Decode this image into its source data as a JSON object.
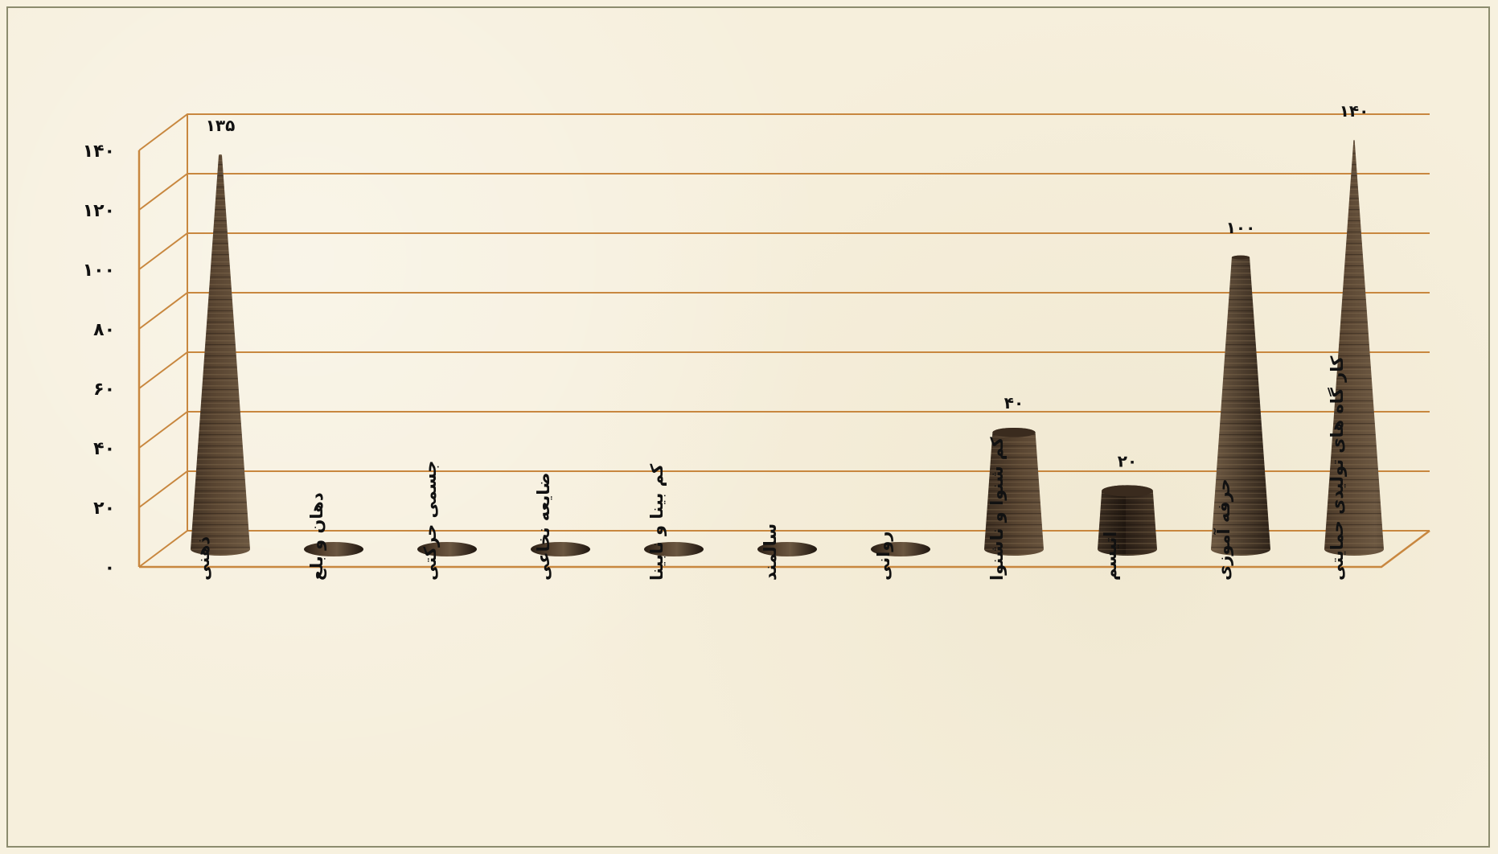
{
  "chart_data": {
    "type": "bar",
    "bar_shape": "cone",
    "categories": [
      "ذهنی",
      "دهان و بلع",
      "جسمی حرکتی",
      "ضایعه نخاعی",
      "کم بینا و نابینا",
      "سالمند",
      "روانی",
      "کم شنوا و ناشنوا",
      "اتیسم",
      "حرفه آموزی",
      "کار گاه های تولیدی حمایتی"
    ],
    "values": [
      135,
      0,
      0,
      0,
      0,
      0,
      0,
      40,
      20,
      100,
      140
    ],
    "data_labels": [
      "۱۳۵",
      "",
      "",
      "",
      "",
      "",
      "",
      "۴۰",
      "۲۰",
      "۱۰۰",
      "۱۴۰"
    ],
    "ylim": [
      0,
      140
    ],
    "y_ticks": [
      0,
      20,
      40,
      60,
      80,
      100,
      120,
      140
    ],
    "y_tick_labels": [
      "۰",
      "۲۰",
      "۴۰",
      "۶۰",
      "۸۰",
      "۱۰۰",
      "۱۲۰",
      "۱۴۰"
    ],
    "grid": true,
    "legend": "none",
    "colors": {
      "background": "#f6efdc",
      "gridline": "#c8873f",
      "bar_dark": "#2a1f16",
      "bar_light": "#6b5741",
      "text": "#111111"
    }
  }
}
